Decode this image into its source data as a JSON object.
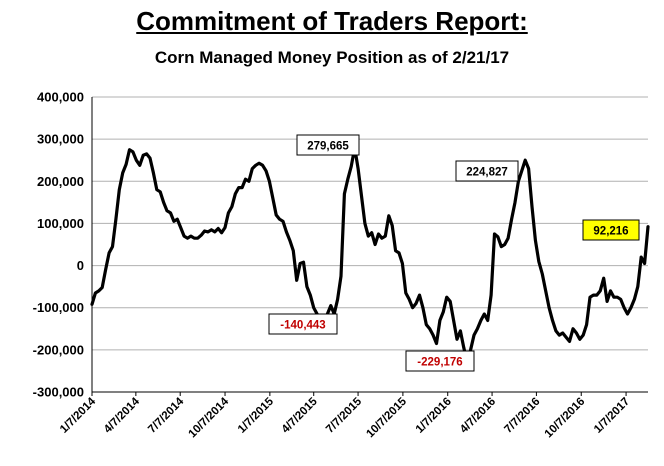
{
  "chart_data": {
    "type": "line",
    "title": "Commitment of Traders Report:",
    "subtitle": "Corn Managed Money Position as of 2/21/17",
    "xlabel": "",
    "ylabel": "",
    "ylim": [
      -300000,
      400000
    ],
    "yticks": [
      400000,
      300000,
      200000,
      100000,
      0,
      -100000,
      -200000,
      -300000
    ],
    "ytick_labels": [
      "400,000",
      "300,000",
      "200,000",
      "100,000",
      "0",
      "-100,000",
      "-200,000",
      "-300,000"
    ],
    "xlim": [
      "2014-01-07",
      "2017-02-21"
    ],
    "xticks": [
      "2014-01-07",
      "2014-04-07",
      "2014-07-07",
      "2014-10-07",
      "2015-01-07",
      "2015-04-07",
      "2015-07-07",
      "2015-10-07",
      "2016-01-07",
      "2016-04-07",
      "2016-07-07",
      "2016-10-07",
      "2017-01-07"
    ],
    "xtick_labels": [
      "1/7/2014",
      "4/7/2014",
      "7/7/2014",
      "10/7/2014",
      "1/7/2015",
      "4/7/2015",
      "7/7/2015",
      "10/7/2015",
      "1/7/2016",
      "4/7/2016",
      "7/7/2016",
      "10/7/2016",
      "1/7/2017"
    ],
    "grid": "horizontal",
    "line_color": "#000000",
    "series": [
      {
        "name": "",
        "points": [
          [
            "2014-01-07",
            -92000
          ],
          [
            "2014-01-14",
            -65000
          ],
          [
            "2014-01-21",
            -60000
          ],
          [
            "2014-01-28",
            -52000
          ],
          [
            "2014-02-04",
            -10000
          ],
          [
            "2014-02-11",
            30000
          ],
          [
            "2014-02-18",
            45000
          ],
          [
            "2014-02-25",
            110000
          ],
          [
            "2014-03-04",
            180000
          ],
          [
            "2014-03-11",
            220000
          ],
          [
            "2014-03-18",
            240000
          ],
          [
            "2014-03-25",
            275000
          ],
          [
            "2014-04-01",
            270000
          ],
          [
            "2014-04-08",
            250000
          ],
          [
            "2014-04-15",
            238000
          ],
          [
            "2014-04-22",
            262000
          ],
          [
            "2014-04-29",
            265000
          ],
          [
            "2014-05-06",
            255000
          ],
          [
            "2014-05-13",
            220000
          ],
          [
            "2014-05-20",
            180000
          ],
          [
            "2014-05-27",
            175000
          ],
          [
            "2014-06-03",
            150000
          ],
          [
            "2014-06-10",
            130000
          ],
          [
            "2014-06-17",
            125000
          ],
          [
            "2014-06-24",
            105000
          ],
          [
            "2014-07-01",
            110000
          ],
          [
            "2014-07-08",
            90000
          ],
          [
            "2014-07-15",
            70000
          ],
          [
            "2014-07-22",
            65000
          ],
          [
            "2014-07-29",
            70000
          ],
          [
            "2014-08-05",
            65000
          ],
          [
            "2014-08-12",
            65000
          ],
          [
            "2014-08-19",
            72000
          ],
          [
            "2014-08-26",
            82000
          ],
          [
            "2014-09-02",
            80000
          ],
          [
            "2014-09-09",
            85000
          ],
          [
            "2014-09-16",
            80000
          ],
          [
            "2014-09-23",
            88000
          ],
          [
            "2014-09-30",
            78000
          ],
          [
            "2014-10-07",
            90000
          ],
          [
            "2014-10-14",
            125000
          ],
          [
            "2014-10-21",
            140000
          ],
          [
            "2014-10-28",
            170000
          ],
          [
            "2014-11-04",
            185000
          ],
          [
            "2014-11-11",
            185000
          ],
          [
            "2014-11-18",
            205000
          ],
          [
            "2014-11-25",
            200000
          ],
          [
            "2014-12-02",
            230000
          ],
          [
            "2014-12-09",
            238000
          ],
          [
            "2014-12-16",
            243000
          ],
          [
            "2014-12-23",
            238000
          ],
          [
            "2014-12-30",
            225000
          ],
          [
            "2015-01-06",
            200000
          ],
          [
            "2015-01-13",
            160000
          ],
          [
            "2015-01-20",
            120000
          ],
          [
            "2015-01-27",
            110000
          ],
          [
            "2015-02-03",
            105000
          ],
          [
            "2015-02-10",
            80000
          ],
          [
            "2015-02-17",
            60000
          ],
          [
            "2015-02-24",
            35000
          ],
          [
            "2015-03-03",
            -35000
          ],
          [
            "2015-03-10",
            5000
          ],
          [
            "2015-03-17",
            8000
          ],
          [
            "2015-03-24",
            -50000
          ],
          [
            "2015-03-31",
            -70000
          ],
          [
            "2015-04-07",
            -100000
          ],
          [
            "2015-04-14",
            -115000
          ],
          [
            "2015-04-21",
            -130000
          ],
          [
            "2015-04-28",
            -140443
          ],
          [
            "2015-05-05",
            -115000
          ],
          [
            "2015-05-12",
            -95000
          ],
          [
            "2015-05-19",
            -115000
          ],
          [
            "2015-05-26",
            -80000
          ],
          [
            "2015-06-02",
            -25000
          ],
          [
            "2015-06-09",
            170000
          ],
          [
            "2015-06-16",
            205000
          ],
          [
            "2015-06-23",
            235000
          ],
          [
            "2015-06-30",
            279665
          ],
          [
            "2015-07-07",
            230000
          ],
          [
            "2015-07-14",
            165000
          ],
          [
            "2015-07-21",
            100000
          ],
          [
            "2015-07-28",
            70000
          ],
          [
            "2015-08-04",
            78000
          ],
          [
            "2015-08-11",
            50000
          ],
          [
            "2015-08-18",
            75000
          ],
          [
            "2015-08-25",
            65000
          ],
          [
            "2015-09-01",
            70000
          ],
          [
            "2015-09-08",
            118000
          ],
          [
            "2015-09-15",
            95000
          ],
          [
            "2015-09-22",
            35000
          ],
          [
            "2015-09-29",
            30000
          ],
          [
            "2015-10-06",
            5000
          ],
          [
            "2015-10-13",
            -65000
          ],
          [
            "2015-10-20",
            -80000
          ],
          [
            "2015-10-27",
            -100000
          ],
          [
            "2015-11-03",
            -90000
          ],
          [
            "2015-11-10",
            -70000
          ],
          [
            "2015-11-17",
            -100000
          ],
          [
            "2015-11-24",
            -140000
          ],
          [
            "2015-12-01",
            -150000
          ],
          [
            "2015-12-08",
            -165000
          ],
          [
            "2015-12-15",
            -185000
          ],
          [
            "2015-12-22",
            -130000
          ],
          [
            "2015-12-29",
            -110000
          ],
          [
            "2016-01-05",
            -75000
          ],
          [
            "2016-01-12",
            -85000
          ],
          [
            "2016-01-19",
            -130000
          ],
          [
            "2016-01-26",
            -175000
          ],
          [
            "2016-02-02",
            -155000
          ],
          [
            "2016-02-09",
            -195000
          ],
          [
            "2016-02-16",
            -229176
          ],
          [
            "2016-02-23",
            -200000
          ],
          [
            "2016-03-01",
            -165000
          ],
          [
            "2016-03-08",
            -150000
          ],
          [
            "2016-03-15",
            -130000
          ],
          [
            "2016-03-22",
            -115000
          ],
          [
            "2016-03-29",
            -130000
          ],
          [
            "2016-04-05",
            -70000
          ],
          [
            "2016-04-12",
            75000
          ],
          [
            "2016-04-19",
            68000
          ],
          [
            "2016-04-26",
            45000
          ],
          [
            "2016-05-03",
            50000
          ],
          [
            "2016-05-10",
            65000
          ],
          [
            "2016-05-17",
            110000
          ],
          [
            "2016-05-24",
            150000
          ],
          [
            "2016-05-31",
            200000
          ],
          [
            "2016-06-07",
            224827
          ],
          [
            "2016-06-14",
            250000
          ],
          [
            "2016-06-21",
            230000
          ],
          [
            "2016-06-28",
            140000
          ],
          [
            "2016-07-05",
            60000
          ],
          [
            "2016-07-12",
            10000
          ],
          [
            "2016-07-19",
            -20000
          ],
          [
            "2016-07-26",
            -60000
          ],
          [
            "2016-08-02",
            -100000
          ],
          [
            "2016-08-09",
            -130000
          ],
          [
            "2016-08-16",
            -155000
          ],
          [
            "2016-08-23",
            -165000
          ],
          [
            "2016-08-30",
            -160000
          ],
          [
            "2016-09-06",
            -170000
          ],
          [
            "2016-09-13",
            -180000
          ],
          [
            "2016-09-20",
            -150000
          ],
          [
            "2016-09-27",
            -160000
          ],
          [
            "2016-10-04",
            -175000
          ],
          [
            "2016-10-11",
            -165000
          ],
          [
            "2016-10-18",
            -140000
          ],
          [
            "2016-10-25",
            -75000
          ],
          [
            "2016-11-01",
            -70000
          ],
          [
            "2016-11-08",
            -70000
          ],
          [
            "2016-11-15",
            -60000
          ],
          [
            "2016-11-22",
            -30000
          ],
          [
            "2016-11-29",
            -85000
          ],
          [
            "2016-12-06",
            -60000
          ],
          [
            "2016-12-13",
            -75000
          ],
          [
            "2016-12-20",
            -75000
          ],
          [
            "2016-12-27",
            -80000
          ],
          [
            "2017-01-03",
            -100000
          ],
          [
            "2017-01-10",
            -115000
          ],
          [
            "2017-01-17",
            -100000
          ],
          [
            "2017-01-24",
            -80000
          ],
          [
            "2017-01-31",
            -50000
          ],
          [
            "2017-02-07",
            20000
          ],
          [
            "2017-02-14",
            5000
          ],
          [
            "2017-02-21",
            92216
          ]
        ]
      }
    ],
    "annotations": [
      {
        "text": "279,665",
        "box": "white",
        "text_color": "#000000"
      },
      {
        "text": "-140,443",
        "box": "white",
        "text_color": "#c00000"
      },
      {
        "text": "224,827",
        "box": "white",
        "text_color": "#000000"
      },
      {
        "text": "-229,176",
        "box": "white",
        "text_color": "#c00000"
      },
      {
        "text": "92,216",
        "box": "yellow",
        "text_color": "#000000"
      }
    ]
  }
}
